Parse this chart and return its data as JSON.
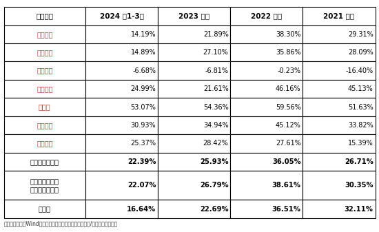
{
  "title": "",
  "columns": [
    "公司名称",
    "2024 年1-3月",
    "2023 年度",
    "2022 年度",
    "2021 年度"
  ],
  "rows": [
    [
      "中芯国际",
      "14.19%",
      "21.89%",
      "38.30%",
      "29.31%"
    ],
    [
      "华虹公司",
      "14.89%",
      "27.10%",
      "35.86%",
      "28.09%"
    ],
    [
      "芯联集成",
      "-6.68%",
      "-6.81%",
      "-0.23%",
      "-16.40%"
    ],
    [
      "晶合集成",
      "24.99%",
      "21.61%",
      "46.16%",
      "45.13%"
    ],
    [
      "台积电",
      "53.07%",
      "54.36%",
      "59.56%",
      "51.63%"
    ],
    [
      "联华电子",
      "30.93%",
      "34.94%",
      "45.12%",
      "33.82%"
    ],
    [
      "格罗方德",
      "25.37%",
      "28.42%",
      "27.61%",
      "15.39%"
    ],
    [
      "可比公司平均值",
      "22.39%",
      "25.93%",
      "36.05%",
      "26.71%"
    ],
    [
      "剔除芯联集成、\n台积电后平均值",
      "22.07%",
      "26.79%",
      "38.61%",
      "30.35%"
    ],
    [
      "发行人",
      "16.64%",
      "22.69%",
      "36.51%",
      "32.11%"
    ]
  ],
  "bold_rows": [
    7,
    8,
    9
  ],
  "header_bg": "#ffffff",
  "header_text_color": "#000000",
  "cell_bg": "#ffffff",
  "border_color": "#000000",
  "col_name_color": "#c0392b",
  "normal_row_name_color": "#c0392b",
  "bold_row_name_color": "#000000",
  "note": "注：数据来源于Wind，可比公司数据为其最新招股说明书/年报数据，下同。"
}
